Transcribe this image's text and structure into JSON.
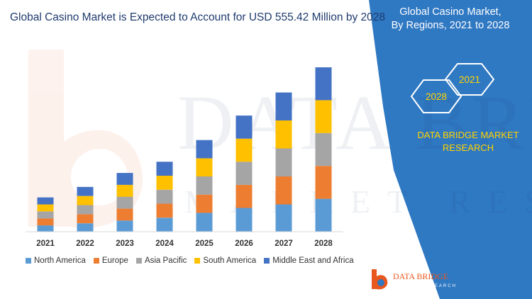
{
  "header": {
    "title": "Global Casino Market is Expected to Account for USD 555.42 Million by 2028"
  },
  "side_panel": {
    "title_line1": "Global Casino Market,",
    "title_line2": "By Regions, 2021 to 2028",
    "hex_start_year": "2028",
    "hex_end_year": "2021",
    "brand_line1": "DATA BRIDGE MARKET",
    "brand_line2": "RESEARCH",
    "panel_color": "#2f78c2",
    "accent_color": "#ffd400"
  },
  "watermark": {
    "text": "DATA BRIDGE",
    "subtext": "MARKET RESEARCH"
  },
  "footer_logo": {
    "name": "DATA BRIDGE",
    "tagline": "MARKET RESEARCH"
  },
  "chart_data": {
    "type": "bar",
    "stacked": true,
    "title": "Global Casino Market is Expected to Account for USD 555.42 Million by 2028",
    "xlabel": "",
    "ylabel": "",
    "ylim": [
      0,
      235
    ],
    "grid": false,
    "legend_position": "bottom",
    "categories": [
      "2021",
      "2022",
      "2023",
      "2024",
      "2025",
      "2026",
      "2027",
      "2028"
    ],
    "series": [
      {
        "name": "North America",
        "color": "#5b9bd5",
        "values": [
          9,
          12,
          16,
          20,
          27,
          34,
          39,
          47
        ]
      },
      {
        "name": "Europe",
        "color": "#ed7d31",
        "values": [
          10,
          13,
          17,
          20,
          26,
          33,
          40,
          47
        ]
      },
      {
        "name": "Asia Pacific",
        "color": "#a5a5a5",
        "values": [
          10,
          13,
          17,
          20,
          26,
          33,
          40,
          47
        ]
      },
      {
        "name": "South America",
        "color": "#ffc000",
        "values": [
          10,
          13,
          17,
          20,
          26,
          33,
          40,
          47
        ]
      },
      {
        "name": "Middle East and Africa",
        "color": "#4472c4",
        "values": [
          10,
          13,
          17,
          20,
          26,
          33,
          40,
          47
        ]
      }
    ]
  }
}
